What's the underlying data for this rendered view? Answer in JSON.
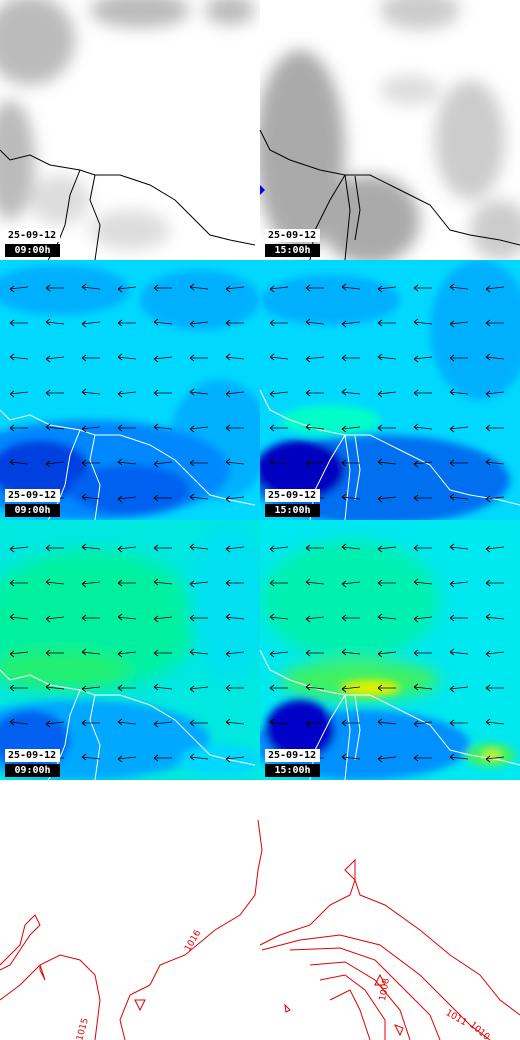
{
  "panels": [
    {
      "date": "25-09-12",
      "time": "09:00h"
    },
    {
      "date": "25-09-12",
      "time": "15:00h"
    },
    {
      "date": "25-09-12",
      "time": "09:00h"
    },
    {
      "date": "25-09-12",
      "time": "15:00h"
    },
    {
      "date": "25-09-12",
      "time": "09:00h"
    },
    {
      "date": "25-09-12",
      "time": "15:00h"
    }
  ],
  "contour_labels": [
    "1016",
    "1015",
    "1008",
    "1011",
    "1010"
  ]
}
